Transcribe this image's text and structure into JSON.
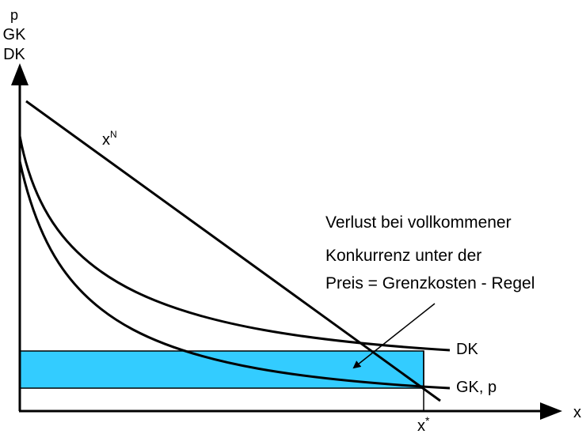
{
  "axes": {
    "y_labels": [
      "p",
      "GK",
      "DK"
    ],
    "x_label": "x",
    "x_star_label": "x",
    "x_star_sup": "*"
  },
  "curves": {
    "demand_label": "x",
    "demand_sup": "N",
    "dk_label": "DK",
    "gk_label": "GK, p"
  },
  "annotation": {
    "lines": [
      "Verlust bei vollkommener",
      "Konkurrenz unter der",
      "Preis = Grenzkosten - Regel"
    ]
  },
  "colors": {
    "loss_fill": "#33ccff",
    "stroke": "#000000"
  }
}
